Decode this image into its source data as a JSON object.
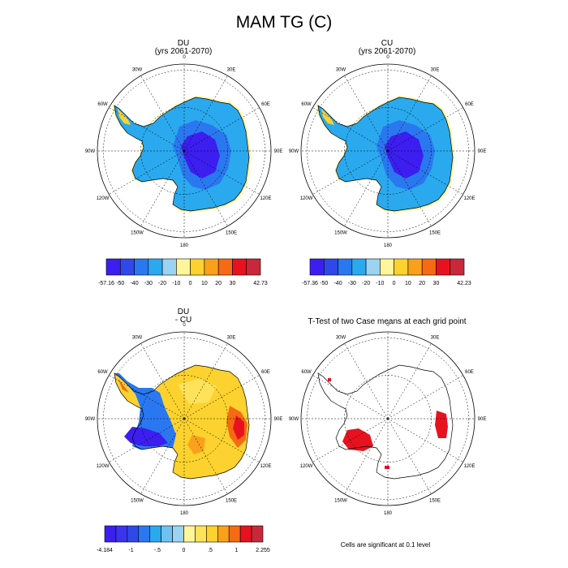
{
  "title": "MAM TG (C)",
  "panels": [
    {
      "id": "du",
      "title_line1": "DU",
      "title_line2": "(yrs 2061-2070)"
    },
    {
      "id": "cu",
      "title_line1": "CU",
      "title_line2": "(yrs 2061-2070)"
    },
    {
      "id": "diff",
      "title_line1": "DU",
      "title_line2": "- CU"
    },
    {
      "id": "ttest",
      "title_line1": "T-Test of two Case means at each grid point",
      "title_line2": ""
    }
  ],
  "footnote": "Cells are significant at 0.1 level",
  "chart_data": [
    {
      "type": "polar-map",
      "panel": "du",
      "variable": "MAM TG (C)",
      "lon_labels": [
        "0",
        "30E",
        "60E",
        "90E",
        "120E",
        "150E",
        "180",
        "150W",
        "120W",
        "90W",
        "60W",
        "30W"
      ],
      "colorbar": {
        "labels": [
          "-57.16",
          "-50",
          "-40",
          "-30",
          "-20",
          "-10",
          "0",
          "10",
          "20",
          "30",
          "42.73"
        ],
        "colors": [
          "#3c1ef0",
          "#2e49e8",
          "#2a78f0",
          "#2aa9ee",
          "#9bd3f2",
          "#fff59a",
          "#fcd22e",
          "#f9a11a",
          "#f56a13",
          "#e8121f",
          "#c8283a"
        ],
        "min": -57.16,
        "max": 42.73
      }
    },
    {
      "type": "polar-map",
      "panel": "cu",
      "variable": "MAM TG (C)",
      "lon_labels": [
        "0",
        "30E",
        "60E",
        "90E",
        "120E",
        "150E",
        "180",
        "150W",
        "120W",
        "90W",
        "60W",
        "30W"
      ],
      "colorbar": {
        "labels": [
          "-57.36",
          "-50",
          "-40",
          "-30",
          "-20",
          "-10",
          "0",
          "10",
          "20",
          "30",
          "42.23"
        ],
        "colors": [
          "#3c1ef0",
          "#2e49e8",
          "#2a78f0",
          "#2aa9ee",
          "#9bd3f2",
          "#fff59a",
          "#fcd22e",
          "#f9a11a",
          "#f56a13",
          "#e8121f",
          "#c8283a"
        ],
        "min": -57.36,
        "max": 42.23
      }
    },
    {
      "type": "polar-map",
      "panel": "diff",
      "variable": "DU - CU",
      "lon_labels": [
        "0",
        "30E",
        "60E",
        "90E",
        "120E",
        "150E",
        "180",
        "150W",
        "120W",
        "90W",
        "60W",
        "30W"
      ],
      "colorbar": {
        "labels": [
          "-4.184",
          "-1",
          "-.5",
          "0",
          ".5",
          "1",
          "2.255"
        ],
        "colors": [
          "#3c1ef0",
          "#3a34ee",
          "#2e49e8",
          "#2a78f0",
          "#2aa9ee",
          "#6fc2f0",
          "#9bd3f2",
          "#fff59a",
          "#fde25a",
          "#fcd22e",
          "#f9a11a",
          "#f56a13",
          "#e8121f",
          "#c8283a"
        ],
        "min": -4.184,
        "max": 2.255
      }
    },
    {
      "type": "polar-map",
      "panel": "ttest",
      "variable": "significance mask",
      "lon_labels": [
        "0",
        "30E",
        "60E",
        "90E",
        "120E",
        "150E",
        "180",
        "150W",
        "120W",
        "90W",
        "60W",
        "30W"
      ],
      "significant_color": "#e8121f"
    }
  ]
}
